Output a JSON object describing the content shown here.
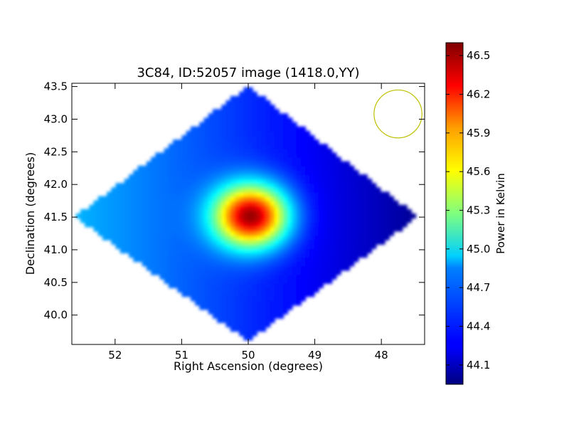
{
  "chart_data": {
    "type": "heatmap",
    "title": "3C84, ID:52057 image (1418.0,YY)",
    "xlabel": "Right Ascension (degrees)",
    "ylabel": "Declination (degrees)",
    "xlim": [
      52.65,
      47.35
    ],
    "ylim": [
      39.55,
      43.55
    ],
    "x_inverted": true,
    "x_ticks": [
      52,
      51,
      50,
      49,
      48
    ],
    "y_ticks": [
      40.0,
      40.5,
      41.0,
      41.5,
      42.0,
      42.5,
      43.0,
      43.5
    ],
    "x_tick_labels": [
      "52",
      "51",
      "50",
      "49",
      "48"
    ],
    "y_tick_labels": [
      "40.0",
      "40.5",
      "41.0",
      "41.5",
      "42.0",
      "42.5",
      "43.0",
      "43.5"
    ],
    "colormap": "jet",
    "colorbar": {
      "label": "Power in Kelvin",
      "min": 43.95,
      "max": 46.6,
      "ticks": [
        44.1,
        44.4,
        44.7,
        45.0,
        45.3,
        45.6,
        45.9,
        46.2,
        46.5
      ],
      "tick_labels": [
        "44.1",
        "44.4",
        "44.7",
        "45.0",
        "45.3",
        "45.6",
        "45.9",
        "46.2",
        "46.5"
      ]
    },
    "coverage_region": {
      "shape": "diamond",
      "vertices_ra_dec": [
        [
          50.0,
          43.5
        ],
        [
          47.45,
          41.5
        ],
        [
          50.0,
          39.6
        ],
        [
          52.6,
          41.5
        ]
      ]
    },
    "source": {
      "ra": 49.95,
      "dec": 41.52,
      "peak": 46.55,
      "sigma_ra": 0.38,
      "sigma_dec": 0.33
    },
    "background": {
      "east_value": 44.75,
      "west_value": 44.0,
      "center_value": 44.4
    },
    "beam_circle": {
      "ra": 47.75,
      "dec": 43.08,
      "radius_deg": 0.36,
      "color": "#bfbf00"
    }
  }
}
